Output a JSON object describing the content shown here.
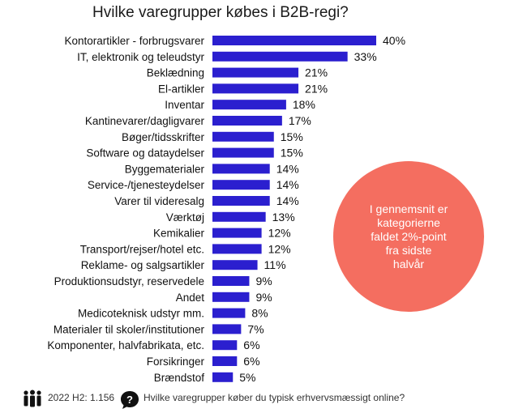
{
  "colors": {
    "bar": "#2b1fcf",
    "bubble": "#f46e60"
  },
  "chart_data": {
    "type": "bar",
    "orientation": "horizontal",
    "title": "Hvilke varegrupper købes i B2B-regi?",
    "categories": [
      "Kontorartikler - forbrugsvarer",
      "IT, elektronik og teleudstyr",
      "Beklædning",
      "El-artikler",
      "Inventar",
      "Kantinevarer/dagligvarer",
      "Bøger/tidsskrifter",
      "Software og dataydelser",
      "Byggematerialer",
      "Service-/tjenesteydelser",
      "Varer til videresalg",
      "Værktøj",
      "Kemikalier",
      "Transport/rejser/hotel etc.",
      "Reklame- og salgsartikler",
      "Produktionsudstyr, reservedele",
      "Andet",
      "Medicoteknisk udstyr mm.",
      "Materialer til skoler/institutioner",
      "Komponenter, halvfabrikata, etc.",
      "Forsikringer",
      "Brændstof"
    ],
    "values": [
      40,
      33,
      21,
      21,
      18,
      17,
      15,
      15,
      14,
      14,
      14,
      13,
      12,
      12,
      11,
      9,
      9,
      8,
      7,
      6,
      6,
      5
    ],
    "value_labels": [
      "40%",
      "33%",
      "21%",
      "21%",
      "18%",
      "17%",
      "15%",
      "15%",
      "14%",
      "14%",
      "14%",
      "13%",
      "12%",
      "12%",
      "11%",
      "9%",
      "9%",
      "8%",
      "7%",
      "6%",
      "6%",
      "5%"
    ],
    "xlim": [
      0,
      40
    ],
    "grid": false,
    "legend": "none"
  },
  "callout": {
    "text": "I gennemsnit er\nkategorierne\nfaldet 2%-point\nfra sidste\nhalvår"
  },
  "footer": {
    "people_icon": "people-icon",
    "sample": "2022 H2: 1.156",
    "question_icon": "speech-question-icon",
    "question": "Hvilke varegrupper køber du typisk erhvervsmæssigt online?"
  }
}
